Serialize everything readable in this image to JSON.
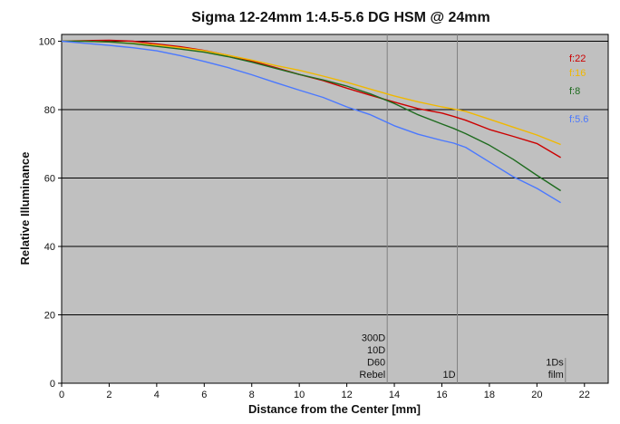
{
  "chart_data": {
    "type": "line",
    "title": "Sigma 12-24mm 1:4.5-5.6 DG HSM @ 24mm",
    "xlabel": "Distance from the Center [mm]",
    "ylabel": "Relative Illuminance",
    "xlim": [
      0,
      23
    ],
    "ylim": [
      0,
      102
    ],
    "xticks": [
      0,
      2,
      4,
      6,
      8,
      10,
      12,
      14,
      16,
      18,
      20,
      22
    ],
    "yticks": [
      0,
      20,
      40,
      60,
      80,
      100
    ],
    "grid": "horizontal",
    "background": "#c0c0c0",
    "legend_placement": "right, at series ends",
    "series": [
      {
        "name": "f:22",
        "color": "#cc0000",
        "x": [
          0,
          1,
          2,
          3,
          4,
          5,
          6,
          7,
          8,
          9,
          10,
          11,
          12,
          13,
          14,
          15,
          16,
          16.5,
          17,
          18,
          19,
          20,
          21
        ],
        "y": [
          100,
          100.2,
          100.3,
          100,
          99.2,
          98.4,
          97.3,
          95.9,
          94.2,
          92.3,
          90.3,
          88.5,
          86.3,
          84.2,
          82.2,
          80.3,
          79,
          78,
          76.9,
          74.2,
          72.2,
          70.1,
          66
        ]
      },
      {
        "name": "f:16",
        "color": "#f0b800",
        "x": [
          0,
          1,
          2,
          3,
          4,
          5,
          6,
          7,
          8,
          9,
          10,
          11,
          12,
          13,
          14,
          15,
          16,
          16.5,
          17,
          18,
          19,
          20,
          21
        ],
        "y": [
          100,
          100,
          99.8,
          99.4,
          98.9,
          98.1,
          97.2,
          95.9,
          94.5,
          92.9,
          91.5,
          89.8,
          88,
          86,
          84,
          82.3,
          80.8,
          80.2,
          79.5,
          77.2,
          74.9,
          72.6,
          69.8
        ]
      },
      {
        "name": "f:8",
        "color": "#1e6b1e",
        "x": [
          0,
          1,
          2,
          3,
          4,
          5,
          6,
          7,
          8,
          9,
          10,
          11,
          12,
          13,
          14,
          15,
          16,
          16.5,
          17,
          18,
          19,
          20,
          21
        ],
        "y": [
          100,
          100,
          99.8,
          99.3,
          98.5,
          97.7,
          96.8,
          95.5,
          93.9,
          92.1,
          90.3,
          88.7,
          86.9,
          84.6,
          81.8,
          78.5,
          75.8,
          74.5,
          73,
          69.6,
          65.5,
          60.8,
          56.3
        ]
      },
      {
        "name": "f:5.6",
        "color": "#4a78ff",
        "x": [
          0,
          1,
          2,
          3,
          4,
          5,
          6,
          7,
          8,
          9,
          10,
          11,
          12,
          13,
          14,
          15,
          16,
          16.5,
          17,
          18,
          19,
          20,
          21
        ],
        "y": [
          100,
          99.4,
          98.8,
          98.1,
          97.2,
          95.8,
          94.1,
          92.3,
          90.2,
          87.9,
          85.7,
          83.6,
          80.8,
          78.5,
          75.3,
          72.8,
          71,
          70.2,
          69,
          64.7,
          60.4,
          57,
          52.8
        ]
      }
    ],
    "annotations": [
      {
        "x": 13.7,
        "lines": [
          "300D",
          "10D",
          "D60",
          "Rebel"
        ]
      },
      {
        "x": 16.65,
        "lines": [
          "1D"
        ]
      },
      {
        "x": 21.2,
        "lines": [
          "1Ds",
          "film"
        ]
      }
    ]
  }
}
